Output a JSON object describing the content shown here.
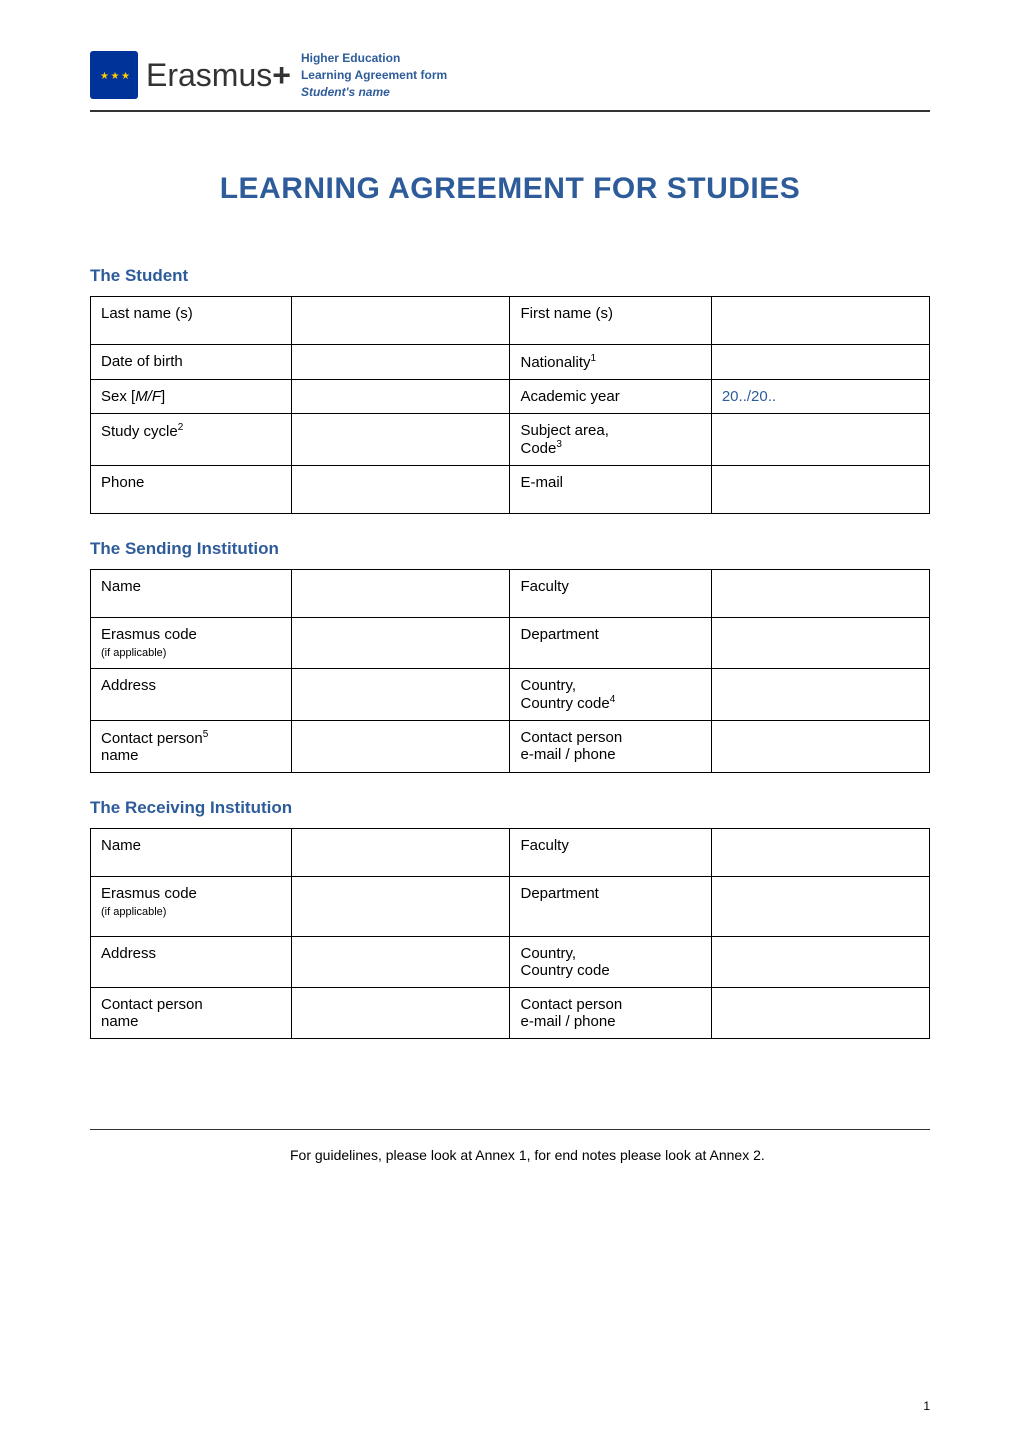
{
  "header": {
    "brand": "Erasmus",
    "brand_plus": "+",
    "meta1": "Higher Education",
    "meta2": "Learning Agreement form",
    "meta3": "Student's name"
  },
  "title": "LEARNING AGREEMENT FOR STUDIES",
  "student": {
    "heading": "The Student",
    "rows": [
      {
        "label1": "Last name (s)",
        "value1": "",
        "label2": "First name (s)",
        "value2": ""
      },
      {
        "label1": "Date of birth",
        "value1": "",
        "label2": "Nationality",
        "sup2": "1",
        "value2": ""
      },
      {
        "label1": "Sex [",
        "italic1": "M/F",
        "after1": "]",
        "value1": "",
        "label2": "Academic year",
        "value2": "20../20..",
        "value2_blue": true
      },
      {
        "label1": "Study cycle",
        "sup1": "2",
        "value1": "",
        "label2": "Subject area,\nCode",
        "sup2": "3",
        "value2": ""
      },
      {
        "label1": "Phone",
        "value1": "",
        "label2": "E-mail",
        "value2": ""
      }
    ]
  },
  "sending": {
    "heading": "The Sending Institution",
    "rows": [
      {
        "label1": "Name",
        "value1": "",
        "label2": "Faculty",
        "value2": ""
      },
      {
        "label1": "Erasmus code",
        "note1": "(if applicable)",
        "value1": "",
        "label2": "Department",
        "value2": ""
      },
      {
        "label1": "Address",
        "value1": "",
        "label2": "Country,\nCountry code",
        "sup2": "4",
        "value2": ""
      },
      {
        "label1": "Contact person",
        "sup1": "5",
        "after1": "\nname",
        "value1": "",
        "label2": "Contact person\ne-mail / phone",
        "value2": ""
      }
    ]
  },
  "receiving": {
    "heading": "The Receiving Institution",
    "rows": [
      {
        "label1": "Name",
        "value1": "",
        "label2": "Faculty",
        "value2": ""
      },
      {
        "label1": "Erasmus code",
        "note1": "(if applicable)",
        "value1": "",
        "label2": "Department",
        "value2": ""
      },
      {
        "label1": "Address",
        "value1": "",
        "label2": "Country,\nCountry code",
        "value2": ""
      },
      {
        "label1": "Contact person\nname",
        "value1": "",
        "label2": "Contact person\ne-mail / phone",
        "value2": ""
      }
    ]
  },
  "footnote": "For guidelines, please look at Annex 1, for end notes please look at Annex 2.",
  "page_number": "1",
  "colors": {
    "brand_blue": "#2e5c9a",
    "eu_blue": "#003399",
    "eu_gold": "#ffcc00",
    "text": "#000000",
    "bg": "#ffffff"
  }
}
